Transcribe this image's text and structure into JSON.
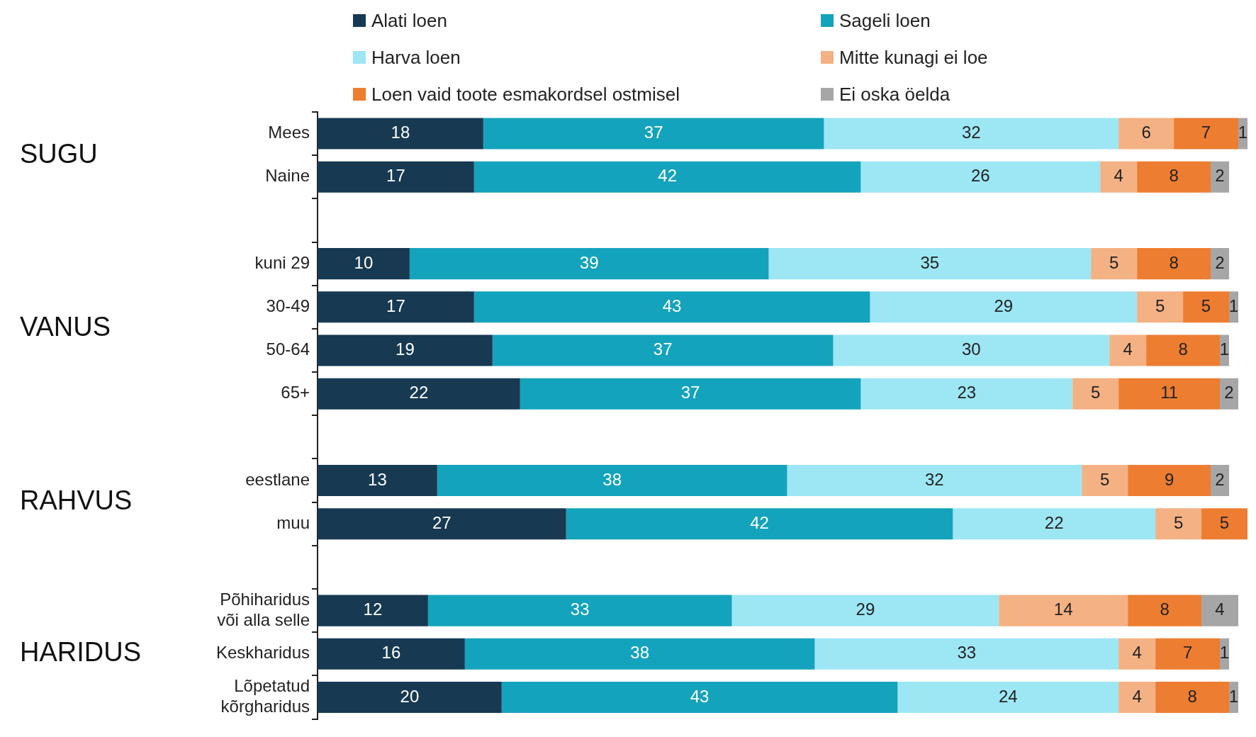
{
  "chart_data": {
    "type": "bar",
    "orientation": "horizontal",
    "stacked": true,
    "data_labels": true,
    "legend": "top",
    "categories": [
      "Mees",
      "Naine",
      null,
      "kuni 29",
      "30-49",
      "50-64",
      "65+",
      null,
      "eestlane",
      "muu",
      null,
      "Põhiharidus\nvõi alla selle",
      "Keskharidus",
      "Lõpetatud\nkõrgharidus"
    ],
    "annotations": [
      "SUGU",
      "VANUS",
      "RAHVUS",
      "HARIDUS"
    ],
    "series": [
      {
        "name": "Alati loen",
        "color": "#173a52",
        "values": [
          18,
          17,
          null,
          10,
          17,
          19,
          22,
          null,
          13,
          27,
          null,
          12,
          16,
          20
        ]
      },
      {
        "name": "Sageli loen",
        "color": "#14a3bc",
        "values": [
          37,
          42,
          null,
          39,
          43,
          37,
          37,
          null,
          38,
          42,
          null,
          33,
          38,
          43
        ]
      },
      {
        "name": "Harva loen",
        "color": "#9de6f4",
        "values": [
          32,
          26,
          null,
          35,
          29,
          30,
          23,
          null,
          32,
          22,
          null,
          29,
          33,
          24
        ]
      },
      {
        "name": "Mitte kunagi ei loe",
        "color": "#f4b183",
        "values": [
          6,
          4,
          null,
          5,
          5,
          4,
          5,
          null,
          5,
          5,
          null,
          14,
          4,
          4
        ]
      },
      {
        "name": "Loen vaid toote esmakordsel ostmisel",
        "color": "#ed7d31",
        "values": [
          7,
          8,
          null,
          8,
          5,
          8,
          11,
          null,
          9,
          5,
          null,
          8,
          7,
          8
        ]
      },
      {
        "name": "Ei oska öelda",
        "color": "#a6a6a6",
        "values": [
          1,
          2,
          null,
          2,
          1,
          1,
          2,
          null,
          2,
          null,
          null,
          4,
          1,
          1
        ]
      }
    ]
  }
}
